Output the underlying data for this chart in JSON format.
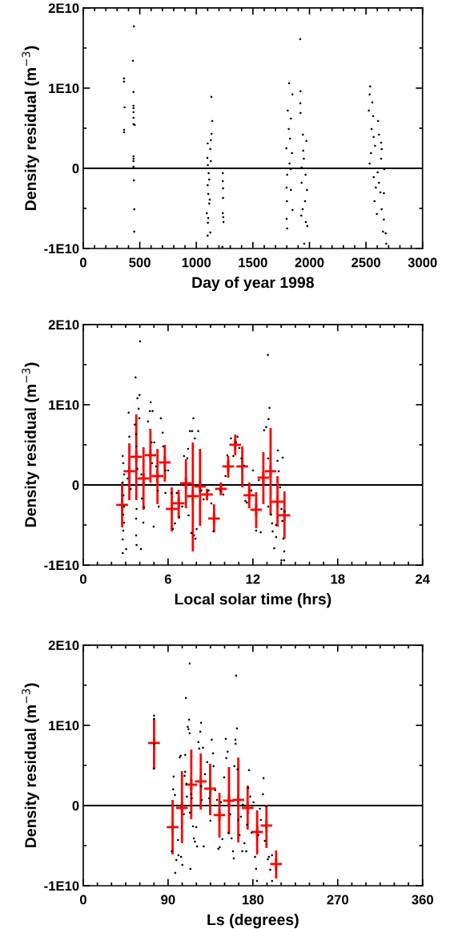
{
  "chart_data": [
    {
      "type": "scatter",
      "xlabel": "Day of year 1998",
      "ylabel": "Density residual (m$^{−3}$)",
      "xlim": [
        0,
        3000
      ],
      "xticks": [
        0,
        {
          "value": 100,
          "label": null
        },
        {
          "value": 200,
          "label": null
        },
        {
          "value": 300,
          "label": null
        },
        {
          "value": 400,
          "label": null
        },
        500,
        {
          "value": 600,
          "label": null
        },
        {
          "value": 700,
          "label": null
        },
        {
          "value": 800,
          "label": null
        },
        {
          "value": 900,
          "label": null
        },
        1000,
        {
          "value": 1100,
          "label": null
        },
        {
          "value": 1200,
          "label": null
        },
        {
          "value": 1300,
          "label": null
        },
        {
          "value": 1400,
          "label": null
        },
        1500,
        {
          "value": 1600,
          "label": null
        },
        {
          "value": 1700,
          "label": null
        },
        {
          "value": 1800,
          "label": null
        },
        {
          "value": 1900,
          "label": null
        },
        2000,
        {
          "value": 2100,
          "label": null
        },
        {
          "value": 2200,
          "label": null
        },
        {
          "value": 2300,
          "label": null
        },
        {
          "value": 2400,
          "label": null
        },
        2500,
        {
          "value": 2600,
          "label": null
        },
        {
          "value": 2700,
          "label": null
        },
        {
          "value": 2800,
          "label": null
        },
        {
          "value": 2900,
          "label": null
        },
        3000
      ],
      "ylim": [
        -10000000000.0,
        20000000000.0
      ],
      "yticks": [
        {
          "value": -10000000000.0,
          "label": "-1E10"
        },
        {
          "value": -5000000000.0,
          "label": null
        },
        0,
        {
          "value": 5000000000.0,
          "label": null
        },
        {
          "value": 10000000000.0,
          "label": "1E10"
        },
        {
          "value": 15000000000.0,
          "label": null
        },
        {
          "value": 20000000000.0,
          "label": "2E10"
        }
      ],
      "ref_lines": [
        {
          "axis": "y",
          "value": 0,
          "color": "#000000"
        }
      ],
      "series": [
        {
          "color": "#000000",
          "marker": "circle",
          "x": [
            361,
            361,
            366,
            361,
            361,
            448,
            439,
            444,
            444,
            444,
            444,
            444,
            444,
            455,
            444,
            444,
            444,
            444,
            448,
            451,
            451,
            1133,
            1140,
            1135,
            1128,
            1100,
            1123,
            1097,
            1128,
            1102,
            1109,
            1114,
            1100,
            1105,
            1119,
            1114,
            1093,
            1105,
            1102,
            1123,
            1100,
            1234,
            1234,
            1236,
            1236,
            1234,
            1238,
            1240,
            1230,
            1820,
            1850,
            1808,
            1836,
            1817,
            1829,
            1796,
            1846,
            1824,
            1834,
            1803,
            1798,
            1836,
            1801,
            1850,
            1798,
            1803,
            1919,
            1921,
            1919,
            1921,
            1942,
            1973,
            1945,
            1950,
            1931,
            1966,
            1931,
            1978,
            1961,
            1940,
            1928,
            1968,
            1980,
            1954,
            2537,
            2532,
            2556,
            2525,
            2563,
            2606,
            2549,
            2568,
            2634,
            2639,
            2544,
            2634,
            2532,
            2662,
            2568,
            2615,
            2587,
            2658,
            2575,
            2639,
            2596,
            2658,
            2650,
            2674,
            2679,
            2615,
            2603,
            2580,
            2627
          ],
          "values": [
            11200000000.0,
            10800000000.0,
            7600000000.0,
            4800000000.0,
            4500000000.0,
            17700000000.0,
            13400000000.0,
            9500000000.0,
            7800000000.0,
            7500000000.0,
            7000000000.0,
            6300000000.0,
            5500000000.0,
            5400000000.0,
            1500000000.0,
            1200000000.0,
            900000000.0,
            200000000.0,
            -1500000000.0,
            -5100000000.0,
            -7900000000.0,
            8900000000.0,
            5900000000.0,
            4300000000.0,
            3500000000.0,
            3100000000.0,
            2400000000.0,
            1300000000.0,
            900000000.0,
            400000000.0,
            -600000000.0,
            -1400000000.0,
            -2100000000.0,
            -3200000000.0,
            -3900000000.0,
            -4400000000.0,
            -5600000000.0,
            -6200000000.0,
            -6800000000.0,
            -8000000000.0,
            -8400000000.0,
            -600000000.0,
            -1600000000.0,
            -2500000000.0,
            -3700000000.0,
            -5600000000.0,
            -6100000000.0,
            -6700000000.0,
            -9800000000.0,
            10600000000.0,
            9200000000.0,
            7200000000.0,
            6200000000.0,
            4900000000.0,
            3700000000.0,
            2500000000.0,
            1900000000.0,
            600000000.0,
            -100000000.0,
            -800000000.0,
            -2400000000.0,
            -2700000000.0,
            -4100000000.0,
            -5200000000.0,
            -6300000000.0,
            -7500000000.0,
            16100000000.0,
            9600000000.0,
            8100000000.0,
            6900000000.0,
            4200000000.0,
            3400000000.0,
            2200000000.0,
            1200000000.0,
            100000000.0,
            -800000000.0,
            -1800000000.0,
            -2700000000.0,
            -4100000000.0,
            -5100000000.0,
            -5900000000.0,
            -6700000000.0,
            -7200000000.0,
            -9400000000.0,
            10200000000.0,
            9200000000.0,
            8200000000.0,
            7200000000.0,
            6500000000.0,
            5900000000.0,
            4900000000.0,
            3900000000.0,
            3200000000.0,
            2400000000.0,
            1900000000.0,
            1200000000.0,
            600000000.0,
            -100000000.0,
            -1100000000.0,
            -1800000000.0,
            -2400000000.0,
            -3100000000.0,
            -4100000000.0,
            -5100000000.0,
            -5700000000.0,
            -6400000000.0,
            -7900000000.0,
            -8100000000.0,
            -9400000000.0,
            4200000000.0,
            -500000000.0,
            2800000000.0,
            -3000000000.0
          ]
        }
      ]
    },
    {
      "type": "scatter",
      "xlabel": "Local solar time (hrs)",
      "ylabel": "Density residual (m$^{−3}$)",
      "xlim": [
        0,
        24
      ],
      "xticks": [
        0,
        {
          "value": 1,
          "label": null
        },
        {
          "value": 2,
          "label": null
        },
        {
          "value": 3,
          "label": null
        },
        {
          "value": 4,
          "label": null
        },
        {
          "value": 5,
          "label": null
        },
        6,
        {
          "value": 7,
          "label": null
        },
        {
          "value": 8,
          "label": null
        },
        {
          "value": 9,
          "label": null
        },
        {
          "value": 10,
          "label": null
        },
        {
          "value": 11,
          "label": null
        },
        12,
        {
          "value": 13,
          "label": null
        },
        {
          "value": 14,
          "label": null
        },
        {
          "value": 15,
          "label": null
        },
        {
          "value": 16,
          "label": null
        },
        {
          "value": 17,
          "label": null
        },
        18,
        {
          "value": 19,
          "label": null
        },
        {
          "value": 20,
          "label": null
        },
        {
          "value": 21,
          "label": null
        },
        {
          "value": 22,
          "label": null
        },
        {
          "value": 23,
          "label": null
        },
        24
      ],
      "ylim": [
        -10000000000.0,
        20000000000.0
      ],
      "yticks": [
        {
          "value": -10000000000.0,
          "label": "-1E10"
        },
        {
          "value": -5000000000.0,
          "label": null
        },
        0,
        {
          "value": 5000000000.0,
          "label": null
        },
        {
          "value": 10000000000.0,
          "label": "1E10"
        },
        {
          "value": 15000000000.0,
          "label": null
        },
        {
          "value": 20000000000.0,
          "label": "2E10"
        }
      ],
      "ref_lines": [
        {
          "axis": "y",
          "value": 0,
          "color": "#000000"
        }
      ],
      "series": [
        {
          "color": "#000000",
          "marker": "circle",
          "x": [
            2.79,
            2.83,
            2.89,
            2.79,
            2.85,
            2.89,
            2.83,
            2.89,
            2.83,
            2.79,
            2.79,
            3.04,
            3.21,
            3.26,
            3.13,
            3.36,
            3.7,
            3.64,
            3.74,
            3.77,
            3.83,
            3.92,
            3.98,
            4.02,
            3.96,
            3.83,
            3.77,
            3.74,
            3.74,
            3.77,
            4.08,
            4.11,
            4.15,
            4.25,
            4.3,
            4.58,
            4.72,
            4.77,
            4.91,
            4.87,
            4.83,
            5.02,
            5.15,
            5.28,
            5.34,
            5.49,
            5.62,
            5.66,
            5.81,
            6.0,
            5.81,
            4.98,
            6.23,
            6.34,
            6.49,
            6.62,
            6.79,
            7.0,
            7.13,
            7.36,
            7.42,
            7.45,
            7.55,
            7.7,
            7.79,
            7.89,
            7.64,
            7.83,
            7.94,
            8.13,
            8.02,
            8.36,
            8.51,
            8.87,
            9.06,
            9.21,
            9.7,
            9.91,
            10.06,
            10.19,
            10.45,
            10.62,
            10.81,
            10.91,
            11.04,
            11.19,
            11.38,
            11.47,
            11.57,
            12.0,
            11.89,
            12.23,
            12.55,
            12.42,
            12.79,
            12.94,
            13.06,
            13.11,
            13.17,
            13.08,
            13.09,
            13.28,
            13.4,
            13.51,
            13.64,
            13.74,
            13.77,
            13.83,
            13.92,
            14.02,
            14.08,
            14.15,
            14.21,
            14.11,
            14.02,
            14.21,
            13.64,
            13.36,
            14.23
          ],
          "values": [
            3600000000.0,
            2700000000.0,
            1300000000.0,
            300000000.0,
            -1300000000.0,
            -2700000000.0,
            -3700000000.0,
            -4700000000.0,
            -5700000000.0,
            -6800000000.0,
            -8500000000.0,
            -8000000000.0,
            9000000000.0,
            6000000000.0,
            800000000.0,
            -500000000.0,
            13400000000.0,
            7500000000.0,
            6300000000.0,
            4800000000.0,
            10800000000.0,
            9500000000.0,
            11200000000.0,
            17900000000.0,
            8300000000.0,
            2000000000.0,
            -3000000000.0,
            -4200000000.0,
            -6300000000.0,
            -7500000000.0,
            -8000000000.0,
            1300000000.0,
            -1700000000.0,
            -4700000000.0,
            -2800000000.0,
            7900000000.0,
            9200000000.0,
            10300000000.0,
            9200000000.0,
            2700000000.0,
            5300000000.0,
            5300000000.0,
            2300000000.0,
            -700000000.0,
            -2700000000.0,
            8300000000.0,
            6500000000.0,
            4800000000.0,
            1800000000.0,
            1800000000.0,
            -1000000000.0,
            -5200000000.0,
            -1000000000.0,
            -5500000000.0,
            -4800000000.0,
            -1000000000.0,
            -4000000000.0,
            -2700000000.0,
            3600000000.0,
            3300000000.0,
            4500000000.0,
            -3800000000.0,
            6700000000.0,
            6700000000.0,
            8300000000.0,
            5800000000.0,
            -6000000000.0,
            -6300000000.0,
            -6700000000.0,
            6700000000.0,
            -5500000000.0,
            -700000000.0,
            -1800000000.0,
            -700000000.0,
            -2300000000.0,
            -5800000000.0,
            -700000000.0,
            -1200000000.0,
            1100000000.0,
            3700000000.0,
            5800000000.0,
            3600000000.0,
            5300000000.0,
            6000000000.0,
            4600000000.0,
            3300000000.0,
            2400000000.0,
            -2000000000.0,
            -2200000000.0,
            1800000000.0,
            -700000000.0,
            -5700000000.0,
            -5900000000.0,
            600000000.0,
            6800000000.0,
            7200000000.0,
            16200000000.0,
            8200000000.0,
            9600000000.0,
            3300000000.0,
            -2700000000.0,
            -3700000000.0,
            -5800000000.0,
            -7900000000.0,
            -6500000000.0,
            3000000000.0,
            4300000000.0,
            1700000000.0,
            -300000000.0,
            -3000000000.0,
            -4500000000.0,
            -6700000000.0,
            -8300000000.0,
            3400000000.0,
            -9400000000.0,
            -9400000000.0,
            -5000000000.0,
            -4800000000.0,
            -3300000000.0
          ]
        },
        {
          "color": "#ff0000",
          "marker": "cross",
          "x": [
            2.75,
            3.26,
            3.75,
            4.26,
            4.75,
            5.25,
            5.77,
            6.26,
            6.75,
            7.26,
            7.75,
            8.26,
            8.75,
            9.25,
            9.74,
            10.25,
            10.75,
            11.25,
            11.74,
            12.23,
            12.74,
            13.25,
            13.74,
            14.23
          ],
          "values": [
            -2500000000.0,
            1700000000.0,
            3500000000.0,
            800000000.0,
            3700000000.0,
            1100000000.0,
            2800000000.0,
            -3000000000.0,
            -2300000000.0,
            200000000.0,
            -1400000000.0,
            -200000000.0,
            -1200000000.0,
            -4200000000.0,
            -500000000.0,
            2300000000.0,
            5000000000.0,
            2300000000.0,
            -1300000000.0,
            -3100000000.0,
            900000000.0,
            1700000000.0,
            -2100000000.0,
            -3800000000.0
          ],
          "errors": [
            [
              -5300000000.0,
              300000000.0
            ],
            [
              -1900000000.0,
              5200000000.0
            ],
            [
              -1900000000.0,
              8800000000.0
            ],
            [
              -3100000000.0,
              4700000000.0
            ],
            [
              300000000.0,
              7000000000.0
            ],
            [
              -2400000000.0,
              4500000000.0
            ],
            [
              400000000.0,
              5000000000.0
            ],
            [
              -5800000000.0,
              -300000000.0
            ],
            [
              -4200000000.0,
              -600000000.0
            ],
            [
              -2900000000.0,
              3200000000.0
            ],
            [
              -8300000000.0,
              5300000000.0
            ],
            [
              -5100000000.0,
              4500000000.0
            ],
            [
              -1800000000.0,
              -500000000.0
            ],
            [
              -5900000000.0,
              -2400000000.0
            ],
            [
              -1300000000.0,
              300000000.0
            ],
            [
              900000000.0,
              3600000000.0
            ],
            [
              3700000000.0,
              6300000000.0
            ],
            [
              -300000000.0,
              4800000000.0
            ],
            [
              -2900000000.0,
              300000000.0
            ],
            [
              -5400000000.0,
              -900000000.0
            ],
            [
              -2400000000.0,
              4100000000.0
            ],
            [
              -3800000000.0,
              7100000000.0
            ],
            [
              -5200000000.0,
              1100000000.0
            ],
            [
              -6700000000.0,
              -800000000.0
            ]
          ]
        }
      ]
    },
    {
      "type": "scatter",
      "xlabel": "Ls (degrees)",
      "ylabel": "Density residual (m$^{−3}$)",
      "xlim": [
        0,
        360
      ],
      "xticks": [
        0,
        {
          "value": 15,
          "label": null
        },
        {
          "value": 30,
          "label": null
        },
        {
          "value": 45,
          "label": null
        },
        {
          "value": 60,
          "label": null
        },
        {
          "value": 75,
          "label": null
        },
        90,
        {
          "value": 105,
          "label": null
        },
        {
          "value": 120,
          "label": null
        },
        {
          "value": 135,
          "label": null
        },
        {
          "value": 150,
          "label": null
        },
        {
          "value": 165,
          "label": null
        },
        180,
        {
          "value": 195,
          "label": null
        },
        {
          "value": 210,
          "label": null
        },
        {
          "value": 225,
          "label": null
        },
        {
          "value": 240,
          "label": null
        },
        {
          "value": 255,
          "label": null
        },
        270,
        {
          "value": 285,
          "label": null
        },
        {
          "value": 300,
          "label": null
        },
        {
          "value": 315,
          "label": null
        },
        {
          "value": 330,
          "label": null
        },
        {
          "value": 345,
          "label": null
        },
        360
      ],
      "ylim": [
        -10000000000.0,
        20000000000.0
      ],
      "yticks": [
        {
          "value": -10000000000.0,
          "label": "-1E10"
        },
        {
          "value": -5000000000.0,
          "label": null
        },
        0,
        {
          "value": 5000000000.0,
          "label": null
        },
        {
          "value": 10000000000.0,
          "label": "1E10"
        },
        {
          "value": 15000000000.0,
          "label": null
        },
        {
          "value": 20000000000.0,
          "label": "2E10"
        }
      ],
      "ref_lines": [
        {
          "axis": "y",
          "value": 0,
          "color": "#000000"
        }
      ],
      "series": [
        {
          "color": "#000000",
          "marker": "circle",
          "x": [
            75.1,
            75.1,
            74.8,
            75.6,
            95.9,
            97.3,
            95.4,
            94.0,
            97.6,
            98.8,
            100.5,
            101.0,
            102.4,
            103.3,
            103.8,
            105.2,
            106.7,
            107.5,
            108.1,
            108.1,
            108.9,
            109.5,
            110.0,
            110.9,
            111.7,
            112.3,
            112.9,
            112.9,
            113.1,
            113.7,
            114.6,
            115.1,
            116.5,
            117.4,
            118.5,
            119.9,
            120.8,
            122.2,
            123.0,
            124.2,
            125.0,
            125.0,
            125.8,
            127.0,
            127.8,
            129.2,
            131.5,
            133.5,
            134.9,
            136.3,
            137.7,
            138.3,
            140.0,
            141.9,
            143.3,
            144.8,
            146.2,
            147.6,
            149.5,
            151.2,
            151.8,
            153.2,
            154.1,
            156.0,
            157.4,
            158.9,
            159.7,
            160.3,
            161.4,
            161.7,
            162.2,
            163.1,
            163.7,
            164.5,
            165.9,
            167.3,
            168.7,
            169.3,
            171.0,
            173.0,
            173.8,
            174.9,
            175.8,
            177.2,
            178.6,
            180.6,
            182.3,
            183.4,
            184.3,
            185.7,
            187.4,
            188.5,
            190.7,
            191.3,
            192.7,
            194.1,
            195.8,
            197.0,
            198.4,
            200.3,
            200.3
          ],
          "values": [
            11200000000.0,
            10800000000.0,
            4600000000.0,
            7700000000.0,
            3600000000.0,
            1300000000.0,
            2000000000.0,
            -5700000000.0,
            -8400000000.0,
            -6800000000.0,
            -4300000000.0,
            -6200000000.0,
            6000000000.0,
            6200000000.0,
            -6400000000.0,
            -7400000000.0,
            -1100000000.0,
            3700000000.0,
            6300000000.0,
            4200000000.0,
            13400000000.0,
            2700000000.0,
            1100000000.0,
            9800000000.0,
            9500000000.0,
            10700000000.0,
            17700000000.0,
            9000000000.0,
            -900000000.0,
            -7900000000.0,
            1400000000.0,
            900000000.0,
            -2600000000.0,
            -4100000000.0,
            -4500000000.0,
            -2700000000.0,
            -5100000000.0,
            7900000000.0,
            7100000000.0,
            9200000000.0,
            10300000000.0,
            2400000000.0,
            700000000.0,
            7200000000.0,
            -5100000000.0,
            3900000000.0,
            5400000000.0,
            900000000.0,
            -1900000000.0,
            8200000000.0,
            6500000000.0,
            4900000000.0,
            1900000000.0,
            700000000.0,
            -5400000000.0,
            -5200000000.0,
            400000000.0,
            -4200000000.0,
            3500000000.0,
            8300000000.0,
            5900000000.0,
            6700000000.0,
            -3400000000.0,
            -1100000000.0,
            -4100000000.0,
            -5700000000.0,
            -6600000000.0,
            4900000000.0,
            8200000000.0,
            7700000000.0,
            16200000000.0,
            9600000000.0,
            4500000000.0,
            -1800000000.0,
            -3700000000.0,
            -1400000000.0,
            -5700000000.0,
            100000000.0,
            -4700000000.0,
            -5700000000.0,
            -2400000000.0,
            2200000000.0,
            4400000000.0,
            1100000000.0,
            -3400000000.0,
            400000000.0,
            -6400000000.0,
            -7900000000.0,
            -9400000000.0,
            -3700000000.0,
            -400000000.0,
            -1800000000.0,
            1400000000.0,
            3400000000.0,
            -4400000000.0,
            -100000000.0,
            -6700000000.0,
            -6400000000.0,
            -8000000000.0,
            -6200000000.0,
            -9400000000.0
          ]
        },
        {
          "color": "#ff0000",
          "marker": "cross",
          "x": [
            75.1,
            94.8,
            104.7,
            114.6,
            124.7,
            134.6,
            144.5,
            154.6,
            164.5,
            174.4,
            184.5,
            194.4,
            204.6
          ],
          "values": [
            7800000000.0,
            -2700000000.0,
            -300000000.0,
            2600000000.0,
            3000000000.0,
            2100000000.0,
            -1200000000.0,
            600000000.0,
            700000000.0,
            -300000000.0,
            -3300000000.0,
            -2500000000.0,
            -7300000000.0
          ],
          "errors": [
            [
              4500000000.0,
              10800000000.0
            ],
            [
              -6100000000.0,
              700000000.0
            ],
            [
              -4700000000.0,
              4300000000.0
            ],
            [
              -1700000000.0,
              7000000000.0
            ],
            [
              -500000000.0,
              6500000000.0
            ],
            [
              -1200000000.0,
              5200000000.0
            ],
            [
              -4000000000.0,
              1600000000.0
            ],
            [
              -3600000000.0,
              4800000000.0
            ],
            [
              -4600000000.0,
              6000000000.0
            ],
            [
              -3000000000.0,
              2500000000.0
            ],
            [
              -6100000000.0,
              -600000000.0
            ],
            [
              -5300000000.0,
              100000000.0
            ],
            [
              -9100000000.0,
              -5600000000.0
            ]
          ]
        }
      ]
    }
  ]
}
